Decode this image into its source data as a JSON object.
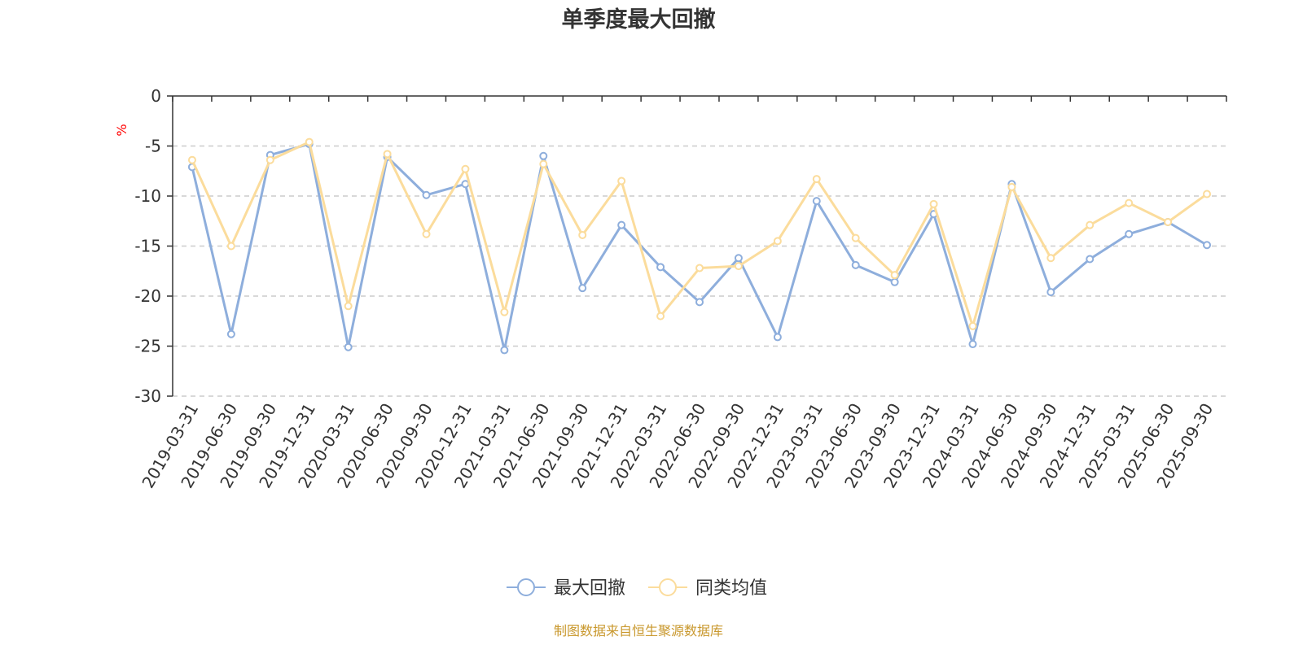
{
  "chart_data": {
    "type": "line",
    "title": "单季度最大回撤",
    "ylabel": "%",
    "xlabel": "",
    "ylim": [
      -30,
      0
    ],
    "yticks": [
      0,
      -5,
      -10,
      -15,
      -20,
      -25,
      -30
    ],
    "grid": true,
    "legend_position": "bottom",
    "categories": [
      "2019-03-31",
      "2019-06-30",
      "2019-09-30",
      "2019-12-31",
      "2020-03-31",
      "2020-06-30",
      "2020-09-30",
      "2020-12-31",
      "2021-03-31",
      "2021-06-30",
      "2021-09-30",
      "2021-12-31",
      "2022-03-31",
      "2022-06-30",
      "2022-09-30",
      "2022-12-31",
      "2023-03-31",
      "2023-06-30",
      "2023-09-30",
      "2023-12-31",
      "2024-03-31",
      "2024-06-30",
      "2024-09-30",
      "2024-12-31",
      "2025-03-31",
      "2025-06-30",
      "2025-09-30"
    ],
    "series": [
      {
        "name": "最大回撤",
        "color": "#8eaedc",
        "values": [
          -7.1,
          -23.8,
          -5.9,
          -4.8,
          -25.1,
          -6.1,
          -9.9,
          -8.8,
          -25.4,
          -6.0,
          -19.2,
          -12.9,
          -17.1,
          -20.6,
          -16.2,
          -24.1,
          -10.5,
          -16.9,
          -18.6,
          -11.8,
          -24.8,
          -8.8,
          -19.6,
          -16.3,
          -13.8,
          -12.6,
          -14.9
        ]
      },
      {
        "name": "同类均值",
        "color": "#fbdc9c",
        "values": [
          -6.4,
          -15.0,
          -6.4,
          -4.6,
          -21.0,
          -5.8,
          -13.8,
          -7.3,
          -21.6,
          -6.8,
          -13.9,
          -8.5,
          -22.0,
          -17.2,
          -17.0,
          -14.5,
          -8.3,
          -14.2,
          -17.9,
          -10.8,
          -23.0,
          -9.1,
          -16.2,
          -12.9,
          -10.7,
          -12.6,
          -9.8
        ]
      }
    ]
  },
  "footer": {
    "source_text": "制图数据来自恒生聚源数据库",
    "source_color": "#c9982d"
  }
}
